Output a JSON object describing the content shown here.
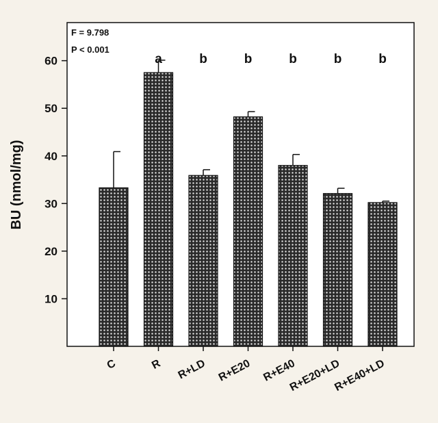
{
  "chart_data": {
    "type": "bar",
    "title": "",
    "xlabel": "",
    "ylabel": "BU (nmol/mg)",
    "ylim": [
      0,
      68
    ],
    "yticks": [
      10,
      20,
      30,
      40,
      50,
      60
    ],
    "grid": false,
    "legend": "none",
    "stats": {
      "f_text": "F = 9.798",
      "p_text": "P < 0.001"
    },
    "categories": [
      "C",
      "R",
      "R+LD",
      "R+E20",
      "R+E40",
      "R+E20+LD",
      "R+E40+LD"
    ],
    "values": [
      33.3,
      57.5,
      35.9,
      48.2,
      38.0,
      32.1,
      30.2
    ],
    "errors": [
      7.6,
      2.6,
      1.2,
      1.1,
      2.3,
      1.1,
      0.3
    ],
    "significance_letters": [
      "",
      "a",
      "b",
      "b",
      "b",
      "b",
      "b"
    ],
    "bar_fill": "#2a2a2a",
    "bar_pattern_dot": "#dcdcdc",
    "axis_color": "#111111",
    "background": "#f6f2ea",
    "plot_background": "#ffffff"
  }
}
